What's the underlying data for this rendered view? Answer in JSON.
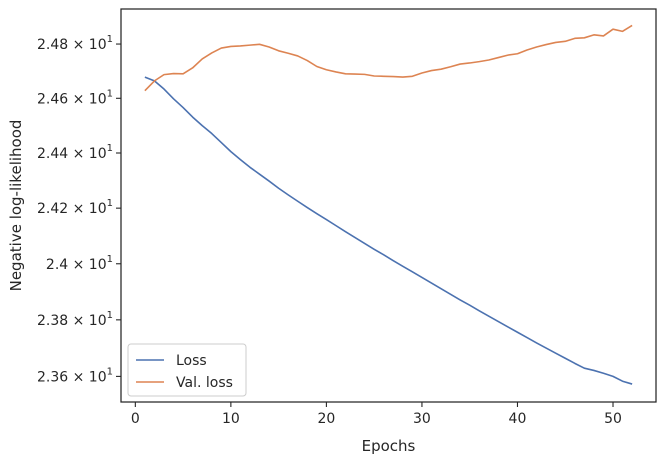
{
  "chart_data": {
    "type": "line",
    "title": "",
    "xlabel": "Epochs",
    "ylabel": "Negative log-likelihood",
    "xlim": [
      -1.5,
      54.5
    ],
    "ylim": [
      23.51,
      24.93
    ],
    "y_scale": "log",
    "grid": false,
    "legend_position": "lower-left",
    "xticks": [
      0,
      10,
      20,
      30,
      40,
      50
    ],
    "xtick_labels": [
      "0",
      "10",
      "20",
      "30",
      "40",
      "50"
    ],
    "yticks": [
      23.6,
      23.8,
      24.0,
      24.2,
      24.4,
      24.6,
      24.8
    ],
    "ytick_labels": [
      {
        "mantissa": "2.36",
        "times": "×",
        "base": "10",
        "exp": "1"
      },
      {
        "mantissa": "2.38",
        "times": "×",
        "base": "10",
        "exp": "1"
      },
      {
        "mantissa": "2.4",
        "times": "×",
        "base": "10",
        "exp": "1"
      },
      {
        "mantissa": "2.42",
        "times": "×",
        "base": "10",
        "exp": "1"
      },
      {
        "mantissa": "2.44",
        "times": "×",
        "base": "10",
        "exp": "1"
      },
      {
        "mantissa": "2.46",
        "times": "×",
        "base": "10",
        "exp": "1"
      },
      {
        "mantissa": "2.48",
        "times": "×",
        "base": "10",
        "exp": "1"
      }
    ],
    "x": [
      1,
      2,
      3,
      4,
      5,
      6,
      7,
      8,
      9,
      10,
      11,
      12,
      13,
      14,
      15,
      16,
      17,
      18,
      19,
      20,
      21,
      22,
      23,
      24,
      25,
      26,
      27,
      28,
      29,
      30,
      31,
      32,
      33,
      34,
      35,
      36,
      37,
      38,
      39,
      40,
      41,
      42,
      43,
      44,
      45,
      46,
      47,
      48,
      49,
      50,
      51,
      52
    ],
    "series": [
      {
        "name": "Loss",
        "color": "#4c72b0",
        "values": [
          24.678,
          24.664,
          24.634,
          24.598,
          24.566,
          24.531,
          24.5,
          24.471,
          24.438,
          24.405,
          24.376,
          24.348,
          24.323,
          24.298,
          24.272,
          24.248,
          24.225,
          24.202,
          24.18,
          24.159,
          24.137,
          24.115,
          24.094,
          24.073,
          24.052,
          24.032,
          24.011,
          23.991,
          23.971,
          23.951,
          23.931,
          23.911,
          23.891,
          23.871,
          23.852,
          23.832,
          23.813,
          23.794,
          23.775,
          23.756,
          23.737,
          23.718,
          23.7,
          23.682,
          23.664,
          23.646,
          23.629,
          23.621,
          23.611,
          23.6,
          23.583,
          23.573
        ]
      },
      {
        "name": "Val. loss",
        "color": "#dd8452",
        "values": [
          24.628,
          24.664,
          24.687,
          24.691,
          24.69,
          24.712,
          24.745,
          24.767,
          24.785,
          24.791,
          24.793,
          24.796,
          24.799,
          24.789,
          24.775,
          24.766,
          24.756,
          24.739,
          24.717,
          24.705,
          24.697,
          24.69,
          24.689,
          24.688,
          24.682,
          24.681,
          24.68,
          24.678,
          24.681,
          24.693,
          24.702,
          24.707,
          24.716,
          24.726,
          24.73,
          24.735,
          24.741,
          24.75,
          24.759,
          24.764,
          24.778,
          24.789,
          24.798,
          24.806,
          24.81,
          24.821,
          24.823,
          24.834,
          24.83,
          24.855,
          24.847,
          24.869
        ]
      }
    ]
  }
}
